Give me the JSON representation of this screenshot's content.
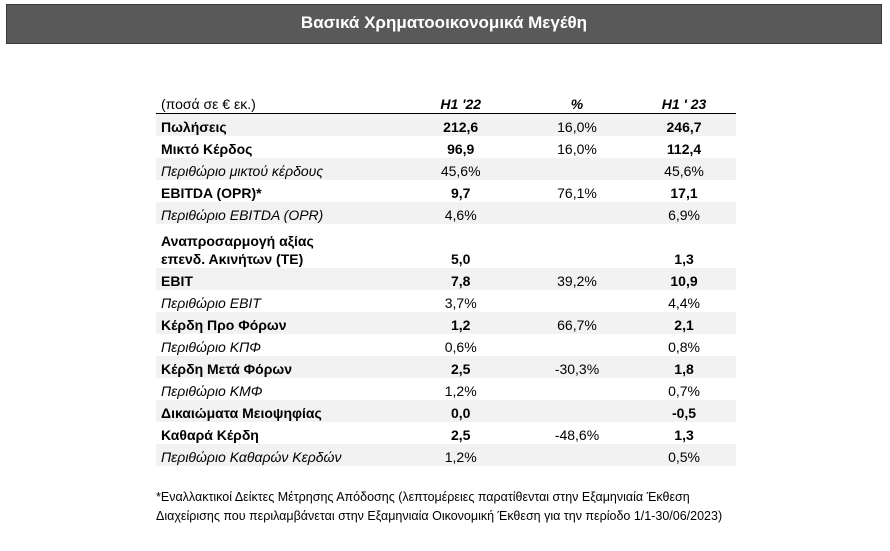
{
  "title": "Βασικά Χρηματοοικονομικά Μεγέθη",
  "table": {
    "headers": {
      "label": "(ποσά σε € εκ.)",
      "h1_22": "H1 '22",
      "pct": "%",
      "h1_23": "H1 ' 23"
    },
    "rows": [
      {
        "label": "Πωλήσεις",
        "h1_22": "212,6",
        "pct": "16,0%",
        "h1_23": "246,7"
      },
      {
        "label": "Μικτό Κέρδος",
        "h1_22": "96,9",
        "pct": "16,0%",
        "h1_23": "112,4"
      },
      {
        "label": "Περιθώριο μικτού κέρδους",
        "h1_22": "45,6%",
        "pct": "",
        "h1_23": "45,6%"
      },
      {
        "label": "EBITDA (OPR)*",
        "h1_22": "9,7",
        "pct": "76,1%",
        "h1_23": "17,1"
      },
      {
        "label": "Περιθώριο EBITDA (OPR)",
        "h1_22": "4,6%",
        "pct": "",
        "h1_23": "6,9%"
      },
      {
        "label": "Αναπροσαρμογή αξίας επενδ. Ακινήτων (TE)",
        "h1_22": "5,0",
        "pct": "",
        "h1_23": "1,3"
      },
      {
        "label": "EBIT",
        "h1_22": "7,8",
        "pct": "39,2%",
        "h1_23": "10,9"
      },
      {
        "label": "Περιθώριο EBIT",
        "h1_22": "3,7%",
        "pct": "",
        "h1_23": "4,4%"
      },
      {
        "label": "Κέρδη Προ Φόρων",
        "h1_22": "1,2",
        "pct": "66,7%",
        "h1_23": "2,1"
      },
      {
        "label": "Περιθώριο ΚΠΦ",
        "h1_22": "0,6%",
        "pct": "",
        "h1_23": "0,8%"
      },
      {
        "label": "Κέρδη Μετά Φόρων",
        "h1_22": "2,5",
        "pct": "-30,3%",
        "h1_23": "1,8"
      },
      {
        "label": "Περιθώριο ΚΜΦ",
        "h1_22": "1,2%",
        "pct": "",
        "h1_23": "0,7%"
      },
      {
        "label": "Δικαιώματα Μειοψηφίας",
        "h1_22": "0,0",
        "pct": "",
        "h1_23": "-0,5"
      },
      {
        "label": "Καθαρά Κέρδη",
        "h1_22": "2,5",
        "pct": "-48,6%",
        "h1_23": "1,3"
      },
      {
        "label": "Περιθώριο Καθαρών Κερδών",
        "h1_22": "1,2%",
        "pct": "",
        "h1_23": "0,5%"
      }
    ]
  },
  "footnote": {
    "line1": "*Εναλλακτικοί Δείκτες Μέτρησης Απόδοσης (λεπτομέρειες παρατίθενται στην Εξαμηνιαία Έκθεση",
    "line2": "Διαχείρισης που περιλαμβάνεται στην Εξαμηνιαία Οικονομική Έκθεση για την περίοδο 1/1-30/06/2023)"
  }
}
